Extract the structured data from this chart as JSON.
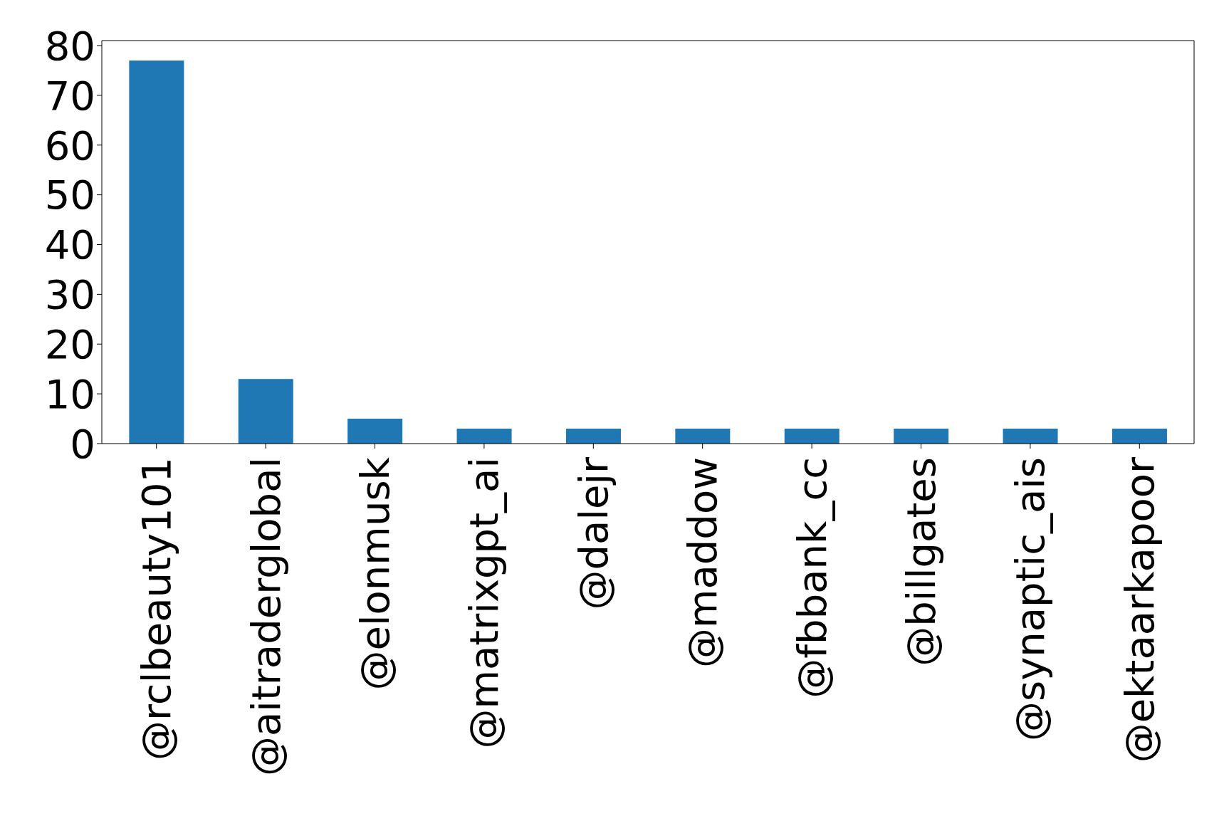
{
  "chart_data": {
    "type": "bar",
    "categories": [
      "@rclbeauty101",
      "@aitraderglobal",
      "@elonmusk",
      "@matrixgpt_ai",
      "@dalejr",
      "@maddow",
      "@fbbank_cc",
      "@billgates",
      "@synaptic_ais",
      "@ektaarkapoor"
    ],
    "values": [
      77,
      13,
      5,
      3,
      3,
      3,
      3,
      3,
      3,
      3
    ],
    "color": "#1f77b4",
    "ylim": [
      0,
      81
    ],
    "yticks": [
      0,
      10,
      20,
      30,
      40,
      50,
      60,
      70,
      80
    ],
    "grid": false
  }
}
